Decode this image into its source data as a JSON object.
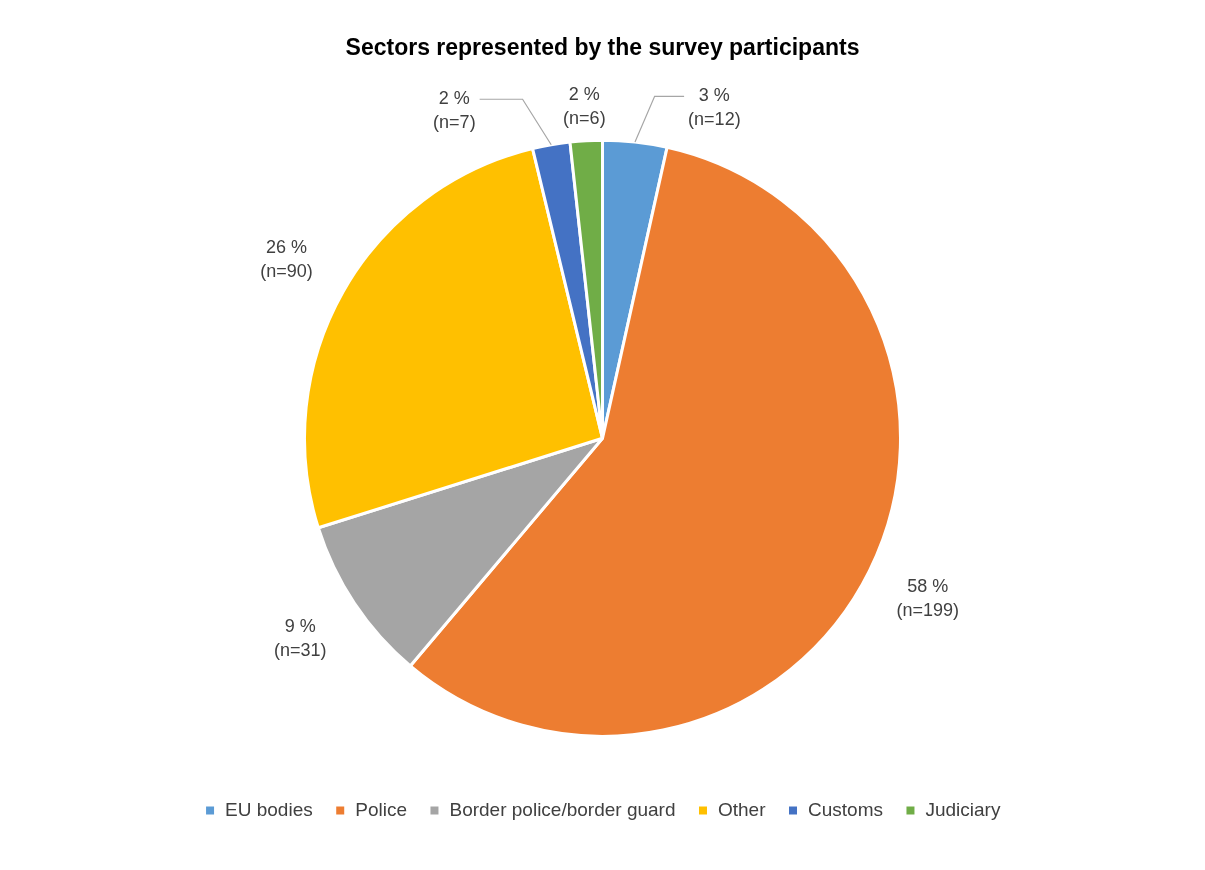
{
  "chart_data": {
    "type": "pie",
    "title": "Sectors represented by the survey participants",
    "categories": [
      "EU bodies",
      "Police",
      "Border police/border guard",
      "Other",
      "Customs",
      "Judiciary"
    ],
    "values": [
      12,
      199,
      31,
      90,
      7,
      6
    ],
    "colors": [
      "#5b9bd5",
      "#ed7d31",
      "#a5a5a5",
      "#ffc000",
      "#4472c4",
      "#70ad47"
    ],
    "value_labels": [
      "3 %\n(n=12)",
      "58 %\n(n=199)",
      "9 %\n(n=31)",
      "26 %\n(n=90)",
      "2 %\n(n=7)",
      "2 %\n(n=6)"
    ],
    "legend": "bottom"
  }
}
